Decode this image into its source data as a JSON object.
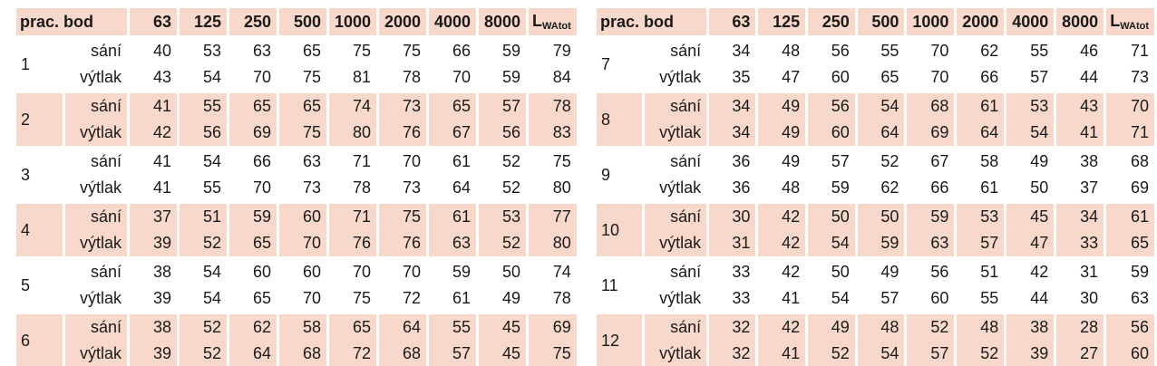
{
  "tables": [
    {
      "header": {
        "first": "prac. bod",
        "columns": [
          "63",
          "125",
          "250",
          "500",
          "1000",
          "2000",
          "4000",
          "8000"
        ],
        "total": {
          "main": "L",
          "sub": "WAtot"
        }
      },
      "points": [
        {
          "id": "1",
          "rows": [
            {
              "label": "sání",
              "values": [
                40,
                53,
                63,
                65,
                75,
                75,
                66,
                59,
                79
              ]
            },
            {
              "label": "výtlak",
              "values": [
                43,
                54,
                70,
                75,
                81,
                78,
                70,
                59,
                84
              ]
            }
          ]
        },
        {
          "id": "2",
          "rows": [
            {
              "label": "sání",
              "values": [
                41,
                55,
                65,
                65,
                74,
                73,
                65,
                57,
                78
              ]
            },
            {
              "label": "výtlak",
              "values": [
                42,
                56,
                69,
                75,
                80,
                76,
                67,
                56,
                83
              ]
            }
          ]
        },
        {
          "id": "3",
          "rows": [
            {
              "label": "sání",
              "values": [
                41,
                54,
                66,
                63,
                71,
                70,
                61,
                52,
                75
              ]
            },
            {
              "label": "výtlak",
              "values": [
                41,
                55,
                70,
                73,
                78,
                73,
                64,
                52,
                80
              ]
            }
          ]
        },
        {
          "id": "4",
          "rows": [
            {
              "label": "sání",
              "values": [
                37,
                51,
                59,
                60,
                71,
                75,
                61,
                53,
                77
              ]
            },
            {
              "label": "výtlak",
              "values": [
                39,
                52,
                65,
                70,
                76,
                76,
                63,
                52,
                80
              ]
            }
          ]
        },
        {
          "id": "5",
          "rows": [
            {
              "label": "sání",
              "values": [
                38,
                54,
                60,
                60,
                70,
                70,
                59,
                50,
                74
              ]
            },
            {
              "label": "výtlak",
              "values": [
                39,
                54,
                65,
                70,
                75,
                72,
                61,
                49,
                78
              ]
            }
          ]
        },
        {
          "id": "6",
          "rows": [
            {
              "label": "sání",
              "values": [
                38,
                52,
                62,
                58,
                65,
                64,
                55,
                45,
                69
              ]
            },
            {
              "label": "výtlak",
              "values": [
                39,
                52,
                64,
                68,
                72,
                68,
                57,
                45,
                75
              ]
            }
          ]
        }
      ]
    },
    {
      "header": {
        "first": "prac. bod",
        "columns": [
          "63",
          "125",
          "250",
          "500",
          "1000",
          "2000",
          "4000",
          "8000"
        ],
        "total": {
          "main": "L",
          "sub": "WAtot"
        }
      },
      "points": [
        {
          "id": "7",
          "rows": [
            {
              "label": "sání",
              "values": [
                34,
                48,
                56,
                55,
                70,
                62,
                55,
                46,
                71
              ]
            },
            {
              "label": "výtlak",
              "values": [
                35,
                47,
                60,
                65,
                70,
                66,
                57,
                44,
                73
              ]
            }
          ]
        },
        {
          "id": "8",
          "rows": [
            {
              "label": "sání",
              "values": [
                34,
                49,
                56,
                54,
                68,
                61,
                53,
                43,
                70
              ]
            },
            {
              "label": "výtlak",
              "values": [
                34,
                49,
                60,
                64,
                69,
                64,
                54,
                41,
                71
              ]
            }
          ]
        },
        {
          "id": "9",
          "rows": [
            {
              "label": "sání",
              "values": [
                36,
                49,
                57,
                52,
                67,
                58,
                49,
                38,
                68
              ]
            },
            {
              "label": "výtlak",
              "values": [
                36,
                48,
                59,
                62,
                66,
                61,
                50,
                37,
                69
              ]
            }
          ]
        },
        {
          "id": "10",
          "rows": [
            {
              "label": "sání",
              "values": [
                30,
                42,
                50,
                50,
                59,
                53,
                45,
                34,
                61
              ]
            },
            {
              "label": "výtlak",
              "values": [
                31,
                42,
                54,
                59,
                63,
                57,
                47,
                33,
                65
              ]
            }
          ]
        },
        {
          "id": "11",
          "rows": [
            {
              "label": "sání",
              "values": [
                33,
                42,
                50,
                49,
                56,
                51,
                42,
                31,
                59
              ]
            },
            {
              "label": "výtlak",
              "values": [
                33,
                41,
                54,
                57,
                60,
                55,
                44,
                30,
                63
              ]
            }
          ]
        },
        {
          "id": "12",
          "rows": [
            {
              "label": "sání",
              "values": [
                32,
                42,
                49,
                48,
                52,
                48,
                38,
                28,
                56
              ]
            },
            {
              "label": "výtlak",
              "values": [
                32,
                41,
                52,
                54,
                57,
                52,
                39,
                27,
                60
              ]
            }
          ]
        }
      ]
    }
  ]
}
